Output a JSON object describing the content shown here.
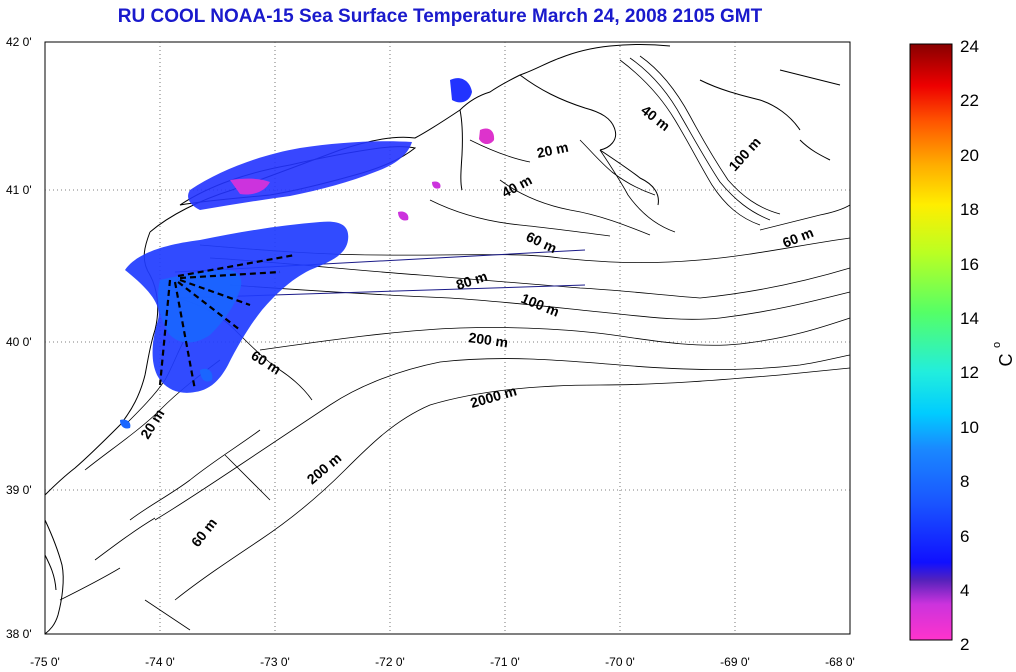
{
  "title": "RU COOL  NOAA-15 Sea Surface Temperature March 24, 2008 2105 GMT",
  "map": {
    "lon_range": [
      -75,
      -68
    ],
    "lat_range": [
      38,
      42
    ],
    "lon_ticks": [
      "-75 0'",
      "-74 0'",
      "-73 0'",
      "-72 0'",
      "-71 0'",
      "-70 0'",
      "-69 0'",
      "-68 0'"
    ],
    "lat_ticks": [
      "42 0'",
      "41 0'",
      "40 0'",
      "39 0'",
      "38 0'"
    ],
    "grid": "dotted",
    "depth_labels": [
      "40 m",
      "20 m",
      "40 m",
      "100 m",
      "60 m",
      "60 m",
      "80 m",
      "100 m",
      "200 m",
      "60 m",
      "2000 m",
      "20 m",
      "200 m",
      "60 m"
    ]
  },
  "colorbar": {
    "min": 2,
    "max": 24,
    "ticks": [
      "24",
      "22",
      "20",
      "18",
      "16",
      "14",
      "12",
      "10",
      "8",
      "6",
      "4",
      "2"
    ],
    "label": "C",
    "label_superscript": "o",
    "colors": [
      "#ff33cc",
      "#cc33dd",
      "#6633cc",
      "#1010ff",
      "#1a66ff",
      "#00ccff",
      "#33ffaa",
      "#aaff33",
      "#ffee00",
      "#ff9900",
      "#ff2200",
      "#880000"
    ]
  }
}
